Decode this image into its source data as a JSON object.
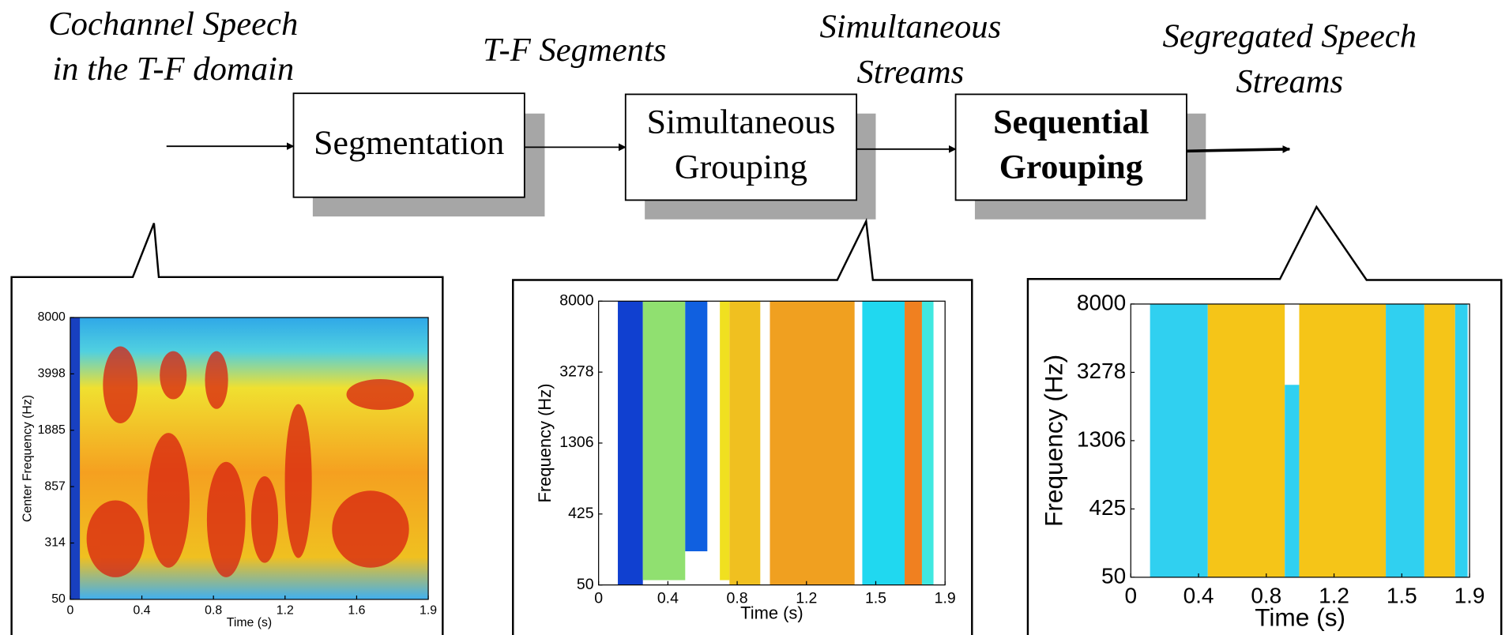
{
  "labels": {
    "input": [
      "Cochannel Speech",
      "in the T-F domain"
    ],
    "segments": "T-F Segments",
    "streams": [
      "Simultaneous",
      "Streams"
    ],
    "output": [
      "Segregated Speech",
      "Streams"
    ]
  },
  "blocks": [
    [
      "Segmentation"
    ],
    [
      "Simultaneous",
      "Grouping"
    ],
    [
      "Sequential",
      "Grouping"
    ]
  ],
  "panels": [
    {
      "ylabel": "Center Frequency (Hz)",
      "xlabel": "Time (s)",
      "yticks": [
        8000,
        3998,
        1885,
        857,
        314,
        50
      ],
      "xticks": [
        0,
        0.4,
        0.8,
        1.2,
        1.6,
        1.9
      ]
    },
    {
      "ylabel": "Frequency (Hz)",
      "xlabel": "Time (s)",
      "yticks": [
        8000,
        3278,
        1306,
        425,
        50
      ],
      "xticks": [
        0,
        0.4,
        0.8,
        1.2,
        1.5,
        1.9
      ]
    },
    {
      "ylabel": "Frequency (Hz)",
      "xlabel": "Time (s)",
      "yticks": [
        8000,
        3278,
        1306,
        425,
        50
      ],
      "xticks": [
        0,
        0.4,
        0.8,
        1.2,
        1.5,
        1.9
      ]
    }
  ]
}
